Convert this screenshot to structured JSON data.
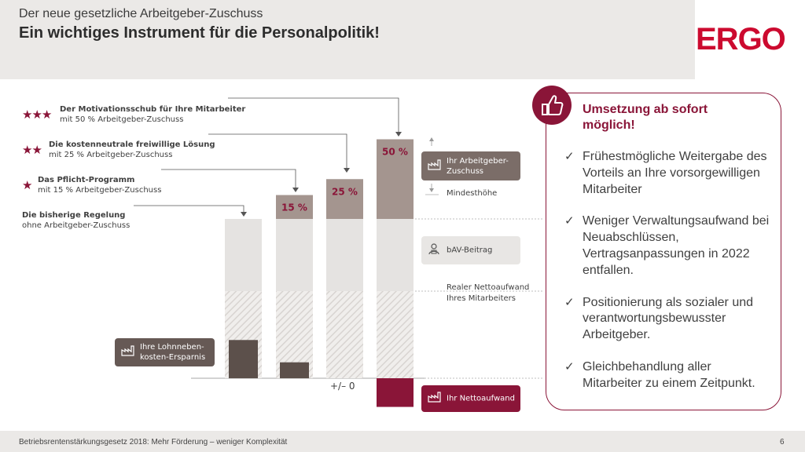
{
  "header": {
    "subtitle": "Der neue gesetzliche Arbeitgeber-Zuschuss",
    "title": "Ein wichtiges Instrument für die Personalpolitik!",
    "logo": "ERGO"
  },
  "levels": [
    {
      "stars": "★★★",
      "title": "Der Motivationsschub für Ihre Mitarbeiter",
      "subtitle": "mit 50 % Arbeitgeber-Zuschuss"
    },
    {
      "stars": "★★",
      "title": "Die kostenneutrale freiwillige Lösung",
      "subtitle": "mit 25 % Arbeitgeber-Zuschuss"
    },
    {
      "stars": "★",
      "title": "Das Pflicht-Programm",
      "subtitle": "mit 15 % Arbeitgeber-Zuschuss"
    },
    {
      "stars": "",
      "title": "Die bisherige Regelung",
      "subtitle": "ohne Arbeitgeber-Zuschuss"
    }
  ],
  "bars": [
    {
      "pct_label": "",
      "employer_share": 0,
      "saving": 0.24,
      "net_cost": 0
    },
    {
      "pct_label": "15 %",
      "employer_share": 0.15,
      "saving": 0.1,
      "net_cost": 0
    },
    {
      "pct_label": "25 %",
      "employer_share": 0.25,
      "saving": 0,
      "net_cost": 0
    },
    {
      "pct_label": "50 %",
      "employer_share": 0.5,
      "saving": 0,
      "net_cost": 0.18
    }
  ],
  "labels": {
    "employer_contribution": "Ihr Arbeitgeber-\nZuschuss",
    "min_height": "Mindesthöhe",
    "bav": "bAV-Beitrag",
    "net_employee": "Realer Nettoaufwand\nIhres Mitarbeiters",
    "saving": "Ihre Lohnneben-\nkosten-Ersparnis",
    "net_cost": "Ihr Nettoaufwand",
    "zero": "+/– 0"
  },
  "card": {
    "title": "Umsetzung ab sofort möglich!",
    "bullets": [
      "Frühestmögliche Weitergabe des Vorteils an Ihre vorsorgewilligen Mitarbeiter",
      "Weniger Verwaltungsaufwand bei Neuabschlüssen, Vertragsanpassungen in 2022 entfallen.",
      "Positionierung als sozialer und verantwortungsbewusster Arbeitgeber.",
      "Gleichbehandlung aller Mitarbeiter zu einem Zeitpunkt."
    ]
  },
  "footer": {
    "text": "Betriebsrentenstärkungsgesetz 2018: Mehr Förderung – weniger Komplexität",
    "page": "6"
  },
  "colors": {
    "accent": "#8a1538",
    "brand": "#cc0a2f",
    "bar_light": "#e5e3e1",
    "bar_dark": "#a4958f",
    "saving_dark": "#5c504b"
  }
}
